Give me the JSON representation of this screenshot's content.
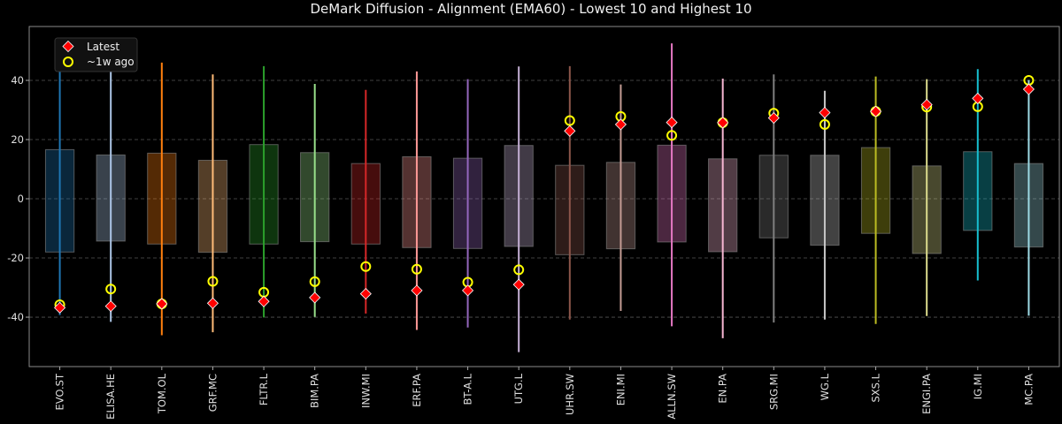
{
  "chart_data": {
    "type": "box-range",
    "title": "DeMark Diffusion - Alignment (EMA60) - Lowest 10 and Highest 10",
    "xlabel": "",
    "ylabel": "",
    "ylim": [
      -56.7,
      58.2
    ],
    "yticks": [
      -40,
      -20,
      0,
      20,
      40
    ],
    "grid": "horizontal dashed",
    "legend_position": "top-left",
    "legend": [
      {
        "label": "Latest",
        "marker": "diamond",
        "color": "#ff0000"
      },
      {
        "label": "~1w ago",
        "marker": "circle-open",
        "color": "#ffff00"
      }
    ],
    "categories": [
      "EVO.ST",
      "ELISA.HE",
      "TOM.OL",
      "GRF.MC",
      "FLTR.L",
      "BIM.PA",
      "INW.MI",
      "ERF.PA",
      "BT-A.L",
      "UTG.L",
      "UHR.SW",
      "ENI.MI",
      "ALLN.SW",
      "EN.PA",
      "SRG.MI",
      "WG.L",
      "SXS.L",
      "ENGI.PA",
      "IG.MI",
      "MC.PA"
    ],
    "colors": [
      "#1f77b4",
      "#aec7e8",
      "#ff7f0e",
      "#ffbb78",
      "#2ca02c",
      "#98df8a",
      "#d62728",
      "#ff9896",
      "#9467bd",
      "#c5b0d5",
      "#8c564b",
      "#c49c94",
      "#e377c2",
      "#f7b6d2",
      "#7f7f7f",
      "#c7c7c7",
      "#bcbd22",
      "#dbdb8d",
      "#17becf",
      "#9edae5"
    ],
    "whisker_high": [
      49.3,
      43.3,
      46.0,
      42.0,
      44.8,
      38.8,
      36.8,
      43.0,
      40.4,
      44.7,
      44.8,
      38.6,
      52.5,
      40.6,
      42.0,
      36.5,
      41.3,
      40.4,
      43.8,
      40.1
    ],
    "whisker_low": [
      -39.3,
      -41.6,
      -46.1,
      -45.1,
      -40.1,
      -39.9,
      -38.8,
      -44.3,
      -43.5,
      -51.8,
      -40.8,
      -37.9,
      -43.1,
      -47.1,
      -41.8,
      -40.8,
      -42.3,
      -39.6,
      -27.6,
      -39.5
    ],
    "box_high": [
      16.6,
      14.8,
      15.4,
      13.0,
      18.3,
      15.6,
      11.9,
      14.2,
      13.7,
      18.0,
      11.3,
      12.3,
      18.1,
      13.5,
      14.7,
      14.7,
      17.3,
      11.1,
      15.9,
      11.9
    ],
    "box_low": [
      -18.0,
      -14.3,
      -15.3,
      -18.1,
      -15.3,
      -14.5,
      -15.3,
      -16.5,
      -16.8,
      -16.1,
      -18.9,
      -16.9,
      -14.6,
      -17.9,
      -13.2,
      -15.7,
      -11.7,
      -18.5,
      -10.7,
      -16.3
    ],
    "series": [
      {
        "name": "Latest",
        "values": [
          -36.8,
          -36.3,
          -35.5,
          -35.3,
          -34.7,
          -33.4,
          -32.1,
          -31.0,
          -31.0,
          -29.0,
          22.9,
          25.1,
          25.8,
          25.7,
          27.3,
          29.1,
          29.5,
          31.8,
          33.9,
          37.0
        ]
      },
      {
        "name": "~1w ago",
        "values": [
          -35.8,
          -30.5,
          -35.5,
          -27.9,
          -31.6,
          -28.0,
          -22.9,
          -23.8,
          -28.2,
          -24.0,
          26.4,
          27.8,
          21.4,
          25.7,
          28.9,
          25.1,
          29.5,
          31.0,
          31.1,
          40.0
        ]
      }
    ]
  }
}
